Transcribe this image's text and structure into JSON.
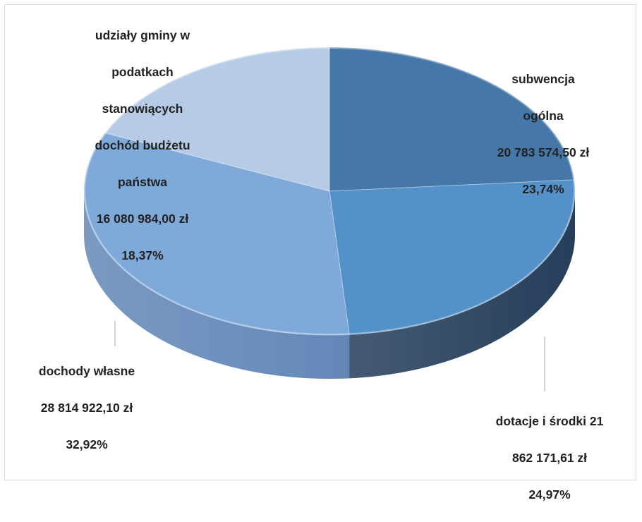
{
  "chart_data": {
    "type": "pie",
    "style": "3d",
    "slices": [
      {
        "label": "subwencja ogólna",
        "value": 20783574.5,
        "value_text": "20 783 574,50 zł",
        "percent": 23.74,
        "percent_text": "23,74%",
        "color": "#4577a8",
        "side_color": "#1f3b58"
      },
      {
        "label": "dotacje i środki",
        "value": 21862171.61,
        "value_text": "21 862 171,61 zł",
        "percent": 24.97,
        "percent_text": "24,97%",
        "color": "#5491c8",
        "side_color": "#253e5a"
      },
      {
        "label": "dochody własne",
        "value": 28814922.1,
        "value_text": "28 814 922,10 zł",
        "percent": 32.92,
        "percent_text": "32,92%",
        "color": "#7fa9d8",
        "side_color": "#6388b8"
      },
      {
        "label": "udziały gminy w podatkach stanowiących dochód budżetu państwa",
        "value": 16080984.0,
        "value_text": "16 080 984,00 zł",
        "percent": 18.37,
        "percent_text": "18,37%",
        "color": "#b5cbe6",
        "side_color": "#8aa9cf"
      }
    ],
    "data_labels": [
      {
        "lines": [
          "subwencja",
          "ogólna",
          "20 783 574,50 zł",
          "23,74%"
        ]
      },
      {
        "lines": [
          "dotacje i środki 21",
          "862 171,61 zł",
          "24,97%"
        ]
      },
      {
        "lines": [
          "dochody własne",
          "28 814 922,10 zł",
          "32,92%"
        ]
      },
      {
        "lines": [
          "udziały gminy w",
          "podatkach",
          "stanowiących",
          "dochód budżetu",
          "państwa",
          "16 080 984,00 zł",
          "18,37%"
        ]
      }
    ],
    "legend": "none",
    "label_color": "#222222",
    "leader_line_color": "#a6a6a6"
  }
}
